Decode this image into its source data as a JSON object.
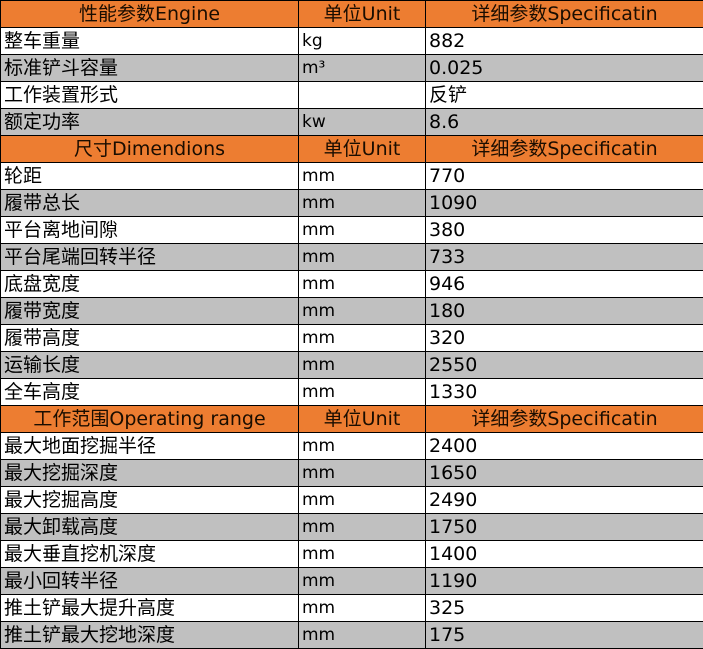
{
  "colors": {
    "header": "#ED7D31",
    "stripe": "#C0C0C0"
  },
  "sections": [
    {
      "title": "性能参数Engine",
      "unit_header": "单位Unit",
      "spec_header": "详细参数Specificatin",
      "rows": [
        {
          "name": "整车重量",
          "unit": "kg",
          "value": "882"
        },
        {
          "name": "标准铲斗容量",
          "unit": "m³",
          "value": "0.025"
        },
        {
          "name": "工作装置形式",
          "unit": "",
          "value": "反铲"
        },
        {
          "name": "额定功率",
          "unit": "kw",
          "value": "8.6"
        }
      ]
    },
    {
      "title": "尺寸Dimendions",
      "unit_header": "单位Unit",
      "spec_header": "详细参数Specificatin",
      "rows": [
        {
          "name": "轮距",
          "unit": "mm",
          "value": "770"
        },
        {
          "name": "履带总长",
          "unit": "mm",
          "value": "1090"
        },
        {
          "name": "平台离地间隙",
          "unit": "mm",
          "value": "380"
        },
        {
          "name": "平台尾端回转半径",
          "unit": "mm",
          "value": "733"
        },
        {
          "name": "底盘宽度",
          "unit": "mm",
          "value": "946"
        },
        {
          "name": "履带宽度",
          "unit": "mm",
          "value": "180"
        },
        {
          "name": "履带高度",
          "unit": "mm",
          "value": "320"
        },
        {
          "name": "运输长度",
          "unit": "mm",
          "value": "2550"
        },
        {
          "name": "全车高度",
          "unit": "mm",
          "value": "1330"
        }
      ]
    },
    {
      "title": "工作范围Operating range",
      "unit_header": "单位Unit",
      "spec_header": "详细参数Specificatin",
      "rows": [
        {
          "name": "最大地面挖掘半径",
          "unit": "mm",
          "value": "2400"
        },
        {
          "name": "最大挖掘深度",
          "unit": "mm",
          "value": "1650"
        },
        {
          "name": "最大挖掘高度",
          "unit": "mm",
          "value": "2490"
        },
        {
          "name": "最大卸载高度",
          "unit": "mm",
          "value": "1750"
        },
        {
          "name": "最大垂直挖机深度",
          "unit": "mm",
          "value": "1400"
        },
        {
          "name": "最小回转半径",
          "unit": "mm",
          "value": "1190"
        },
        {
          "name": "推土铲最大提升高度",
          "unit": "mm",
          "value": "325"
        },
        {
          "name": "推土铲最大挖地深度",
          "unit": "mm",
          "value": "175"
        }
      ]
    }
  ]
}
